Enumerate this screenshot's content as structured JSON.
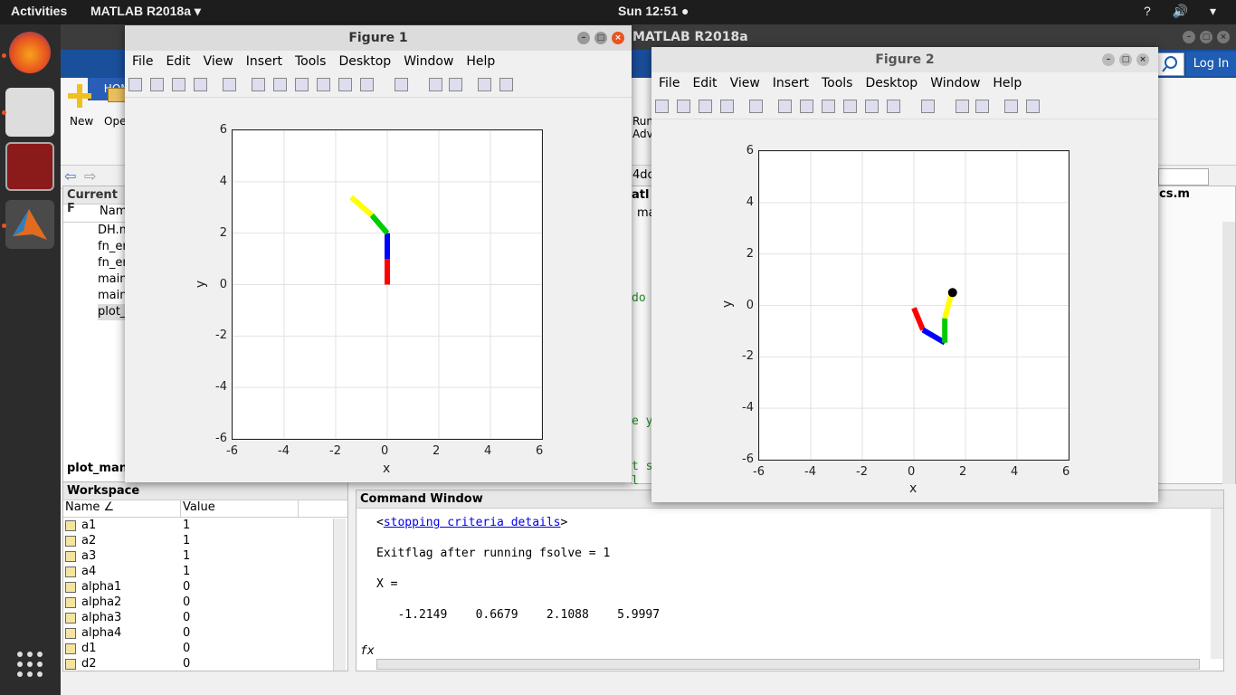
{
  "topbar": {
    "activities": "Activities",
    "app": "MATLAB R2018a ▾",
    "clock": "Sun 12:51 ●",
    "tray": "? 🔊 ▾"
  },
  "matlab": {
    "title": "MATLAB R2018a",
    "home_tab": "HOME",
    "login": "Log In",
    "new_label": "New",
    "open_label": "Ope",
    "run_label": "Run",
    "adv_label": "Adv",
    "path_fragment": "4dc",
    "editor_fragment": "atl",
    "tab_fragment": "ma",
    "file_tab": "cs.m"
  },
  "current_folder": {
    "title": "Current F",
    "col_name": "Nam",
    "files": [
      "DH.m",
      "fn_er",
      "fn_er",
      "main",
      "main",
      "plot_"
    ],
    "status": "plot_man"
  },
  "code_fragments": [
    "do",
    "e y",
    "t s",
    "l"
  ],
  "workspace": {
    "title": "Workspace",
    "col_name": "Name ∠",
    "col_value": "Value",
    "rows": [
      [
        "a1",
        "1"
      ],
      [
        "a2",
        "1"
      ],
      [
        "a3",
        "1"
      ],
      [
        "a4",
        "1"
      ],
      [
        "alpha1",
        "0"
      ],
      [
        "alpha2",
        "0"
      ],
      [
        "alpha3",
        "0"
      ],
      [
        "alpha4",
        "0"
      ],
      [
        "d1",
        "0"
      ],
      [
        "d2",
        "0"
      ]
    ]
  },
  "command_window": {
    "title": "Command Window",
    "link": "stopping criteria details",
    "lt": "<",
    "gt": ">",
    "line1": "Exitflag after running fsolve = 1",
    "line2": "X =",
    "line3": "   -1.2149    0.6679    2.1088    5.9997",
    "prompt": "fx"
  },
  "figure1": {
    "title": "Figure 1",
    "menu": [
      "File",
      "Edit",
      "View",
      "Insert",
      "Tools",
      "Desktop",
      "Window",
      "Help"
    ],
    "xlabel": "x",
    "ylabel": "y",
    "xticks": [
      "-6",
      "-4",
      "-2",
      "0",
      "2",
      "4",
      "6"
    ],
    "yticks": [
      "6",
      "4",
      "2",
      "0",
      "-2",
      "-4",
      "-6"
    ]
  },
  "figure2": {
    "title": "Figure 2",
    "menu": [
      "File",
      "Edit",
      "View",
      "Insert",
      "Tools",
      "Desktop",
      "Window",
      "Help"
    ],
    "xlabel": "x",
    "ylabel": "y",
    "xticks": [
      "-6",
      "-4",
      "-2",
      "0",
      "2",
      "4",
      "6"
    ],
    "yticks": [
      "6",
      "4",
      "2",
      "0",
      "-2",
      "-4",
      "-6"
    ]
  },
  "colors": {
    "link1": "#ff0000",
    "link2": "#0000ff",
    "link3": "#00cc00",
    "link4": "#ffff00"
  },
  "arm1": [
    [
      0,
      0
    ],
    [
      0,
      1
    ],
    [
      0,
      2
    ],
    [
      -0.6,
      2.7
    ],
    [
      -1.4,
      3.4
    ]
  ],
  "arm2": [
    [
      0,
      -0.1
    ],
    [
      0.35,
      -0.95
    ],
    [
      1.2,
      -1.45
    ],
    [
      1.2,
      -0.5
    ],
    [
      1.45,
      0.45
    ]
  ],
  "arm2_target": [
    1.5,
    0.5
  ]
}
